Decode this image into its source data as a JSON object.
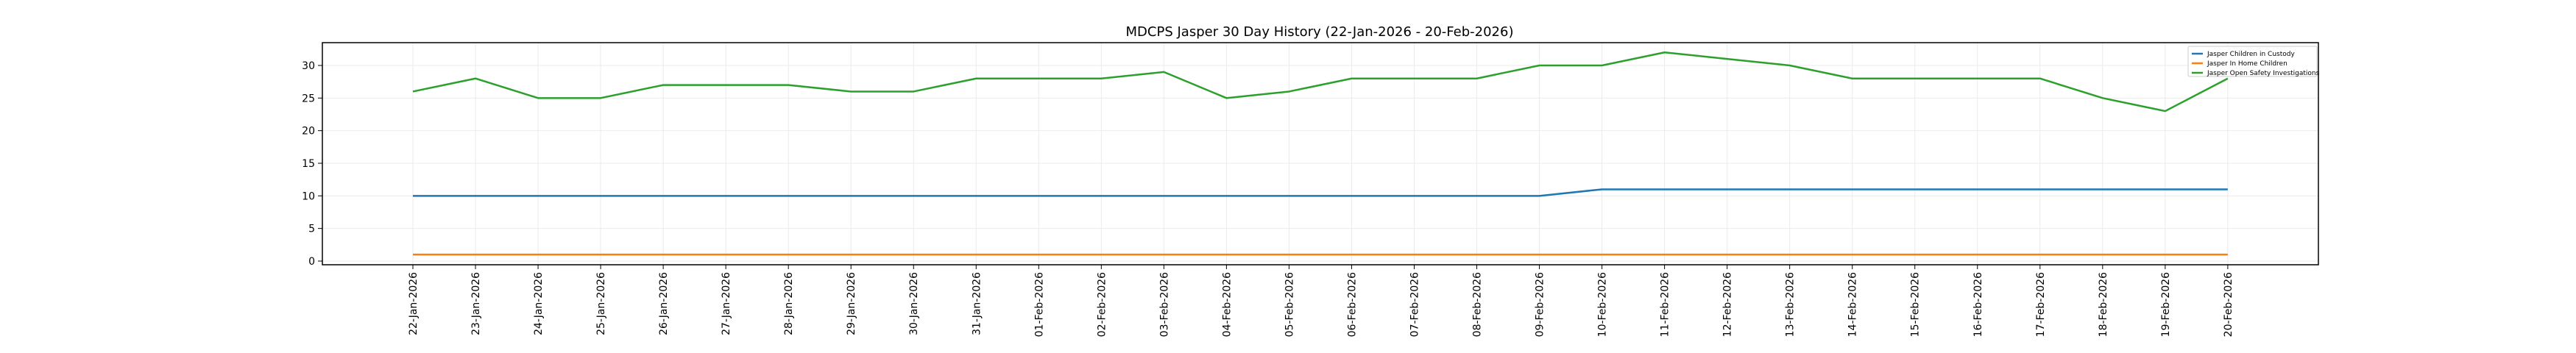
{
  "chart_data": {
    "type": "line",
    "title": "MDCPS Jasper 30 Day History (22-Jan-2026 - 20-Feb-2026)",
    "xlabel": "",
    "ylabel": "",
    "ylim": [
      -0.4,
      33.4
    ],
    "yticks": [
      0,
      5,
      10,
      15,
      20,
      25,
      30
    ],
    "grid": true,
    "legend_position": "top-right",
    "categories": [
      "22-Jan-2026",
      "23-Jan-2026",
      "24-Jan-2026",
      "25-Jan-2026",
      "26-Jan-2026",
      "27-Jan-2026",
      "28-Jan-2026",
      "29-Jan-2026",
      "30-Jan-2026",
      "31-Jan-2026",
      "01-Feb-2026",
      "02-Feb-2026",
      "03-Feb-2026",
      "04-Feb-2026",
      "05-Feb-2026",
      "06-Feb-2026",
      "07-Feb-2026",
      "08-Feb-2026",
      "09-Feb-2026",
      "10-Feb-2026",
      "11-Feb-2026",
      "12-Feb-2026",
      "13-Feb-2026",
      "14-Feb-2026",
      "15-Feb-2026",
      "16-Feb-2026",
      "17-Feb-2026",
      "18-Feb-2026",
      "19-Feb-2026",
      "20-Feb-2026"
    ],
    "series": [
      {
        "name": "Jasper Children in Custody",
        "color": "#1f77b4",
        "values": [
          10,
          10,
          10,
          10,
          10,
          10,
          10,
          10,
          10,
          10,
          10,
          10,
          10,
          10,
          10,
          10,
          10,
          10,
          10,
          11,
          11,
          11,
          11,
          11,
          11,
          11,
          11,
          11,
          11,
          11
        ]
      },
      {
        "name": "Jasper In Home Children",
        "color": "#ff7f0e",
        "values": [
          1,
          1,
          1,
          1,
          1,
          1,
          1,
          1,
          1,
          1,
          1,
          1,
          1,
          1,
          1,
          1,
          1,
          1,
          1,
          1,
          1,
          1,
          1,
          1,
          1,
          1,
          1,
          1,
          1,
          1
        ]
      },
      {
        "name": "Jasper Open Safety Investigations",
        "color": "#2ca02c",
        "values": [
          26,
          28,
          25,
          25,
          27,
          27,
          27,
          26,
          26,
          28,
          28,
          28,
          29,
          25,
          26,
          28,
          28,
          28,
          30,
          30,
          32,
          31,
          30,
          28,
          28,
          28,
          28,
          25,
          23,
          28
        ]
      }
    ]
  }
}
